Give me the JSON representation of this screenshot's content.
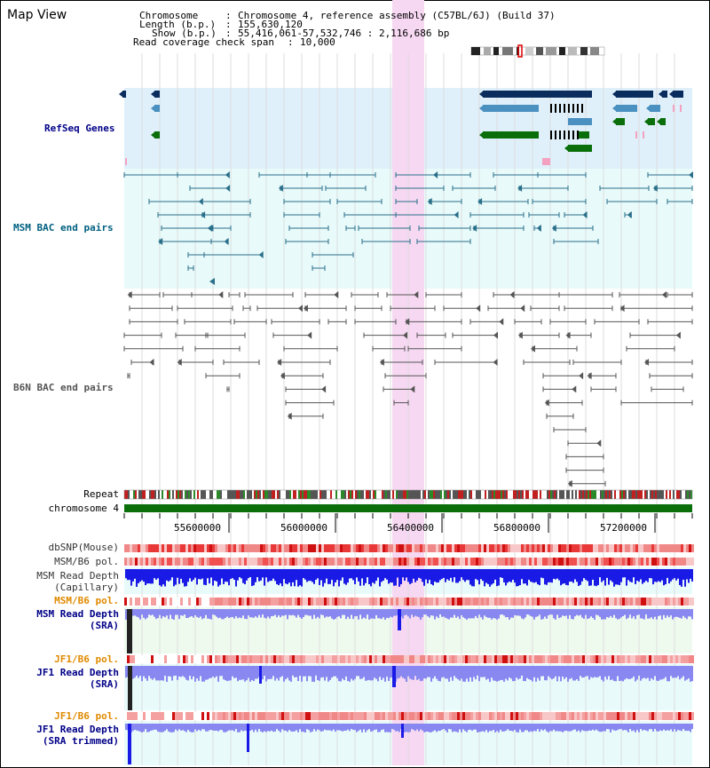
{
  "view": {
    "title": "Map View"
  },
  "header": {
    "chromosome_key": "Chromosome",
    "chromosome_value": "Chromosome 4, reference assembly (C57BL/6J) (Build 37)",
    "length_key": "Length (b.p.)",
    "length_value": "155,630,120",
    "show_key": "Show (b.p.)",
    "show_value": "55,416,061-57,532,746 : 2,116,686 bp",
    "coverage_key": "Read coverage check span",
    "coverage_value": "10,000"
  },
  "tracks": {
    "refseq": "RefSeq Genes",
    "msm_bac": "MSM BAC end pairs",
    "b6n_bac": "B6N BAC end pairs",
    "repeat": "Repeat",
    "chromosome": "chromosome 4",
    "dbsnp": "dbSNP(Mouse)",
    "msm_b6_pol": "MSM/B6 pol.",
    "msm_depth_cap_1": "MSM Read Depth",
    "msm_depth_cap_2": "(Capillary)",
    "msm_b6_pol_2": "MSM/B6 pol.",
    "msm_depth_sra_1": "MSM Read Depth",
    "msm_depth_sra_2": "(SRA)",
    "jf1_b6_pol": "JF1/B6 pol.",
    "jf1_depth_sra_1": "JF1 Read Depth",
    "jf1_depth_sra_2": "(SRA)",
    "jf1_b6_pol_2": "JF1/B6 pol.",
    "jf1_depth_trim_1": "JF1 Read Depth",
    "jf1_depth_trim_2": "(SRA trimmed)"
  },
  "ruler": {
    "ticks": [
      "55600000",
      "56000000",
      "56400000",
      "56800000",
      "57200000"
    ]
  },
  "colors": {
    "refseq_bg": "#dff0fa",
    "msm_bg": "#e8fafa",
    "highlight": "#f7d8f2",
    "gene_dark": "#0a2d5e",
    "gene_mid": "#4a90c0",
    "gene_green": "#0a6e0a",
    "msm_pair": "#2a6f8a",
    "b6n_pair": "#555555",
    "chrom_bar": "#0a6e0a",
    "depth_blue": "#1a1ae6",
    "depth_light": "#8888f0",
    "pol_red": "#e83838",
    "label_blue": "#000088",
    "label_orange": "#e08a00",
    "label_teal": "#006080"
  }
}
